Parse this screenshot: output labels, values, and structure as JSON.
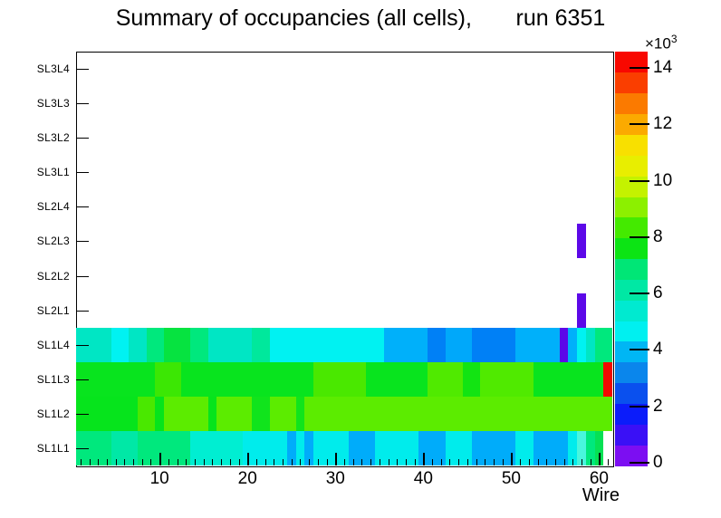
{
  "title": "Summary of occupancies (all cells),       run 6351",
  "layout_colors": {
    "background": "#ffffff",
    "frame": "#000000",
    "text": "#000000"
  },
  "chart_data": {
    "type": "heatmap",
    "title": "Summary of occupancies (all cells),       run 6351",
    "xlabel": "Wire",
    "x_range": [
      0.5,
      61.5
    ],
    "x_major_ticks": [
      10,
      20,
      30,
      40,
      50,
      60
    ],
    "x_minor_tick_step": 1,
    "grid": false,
    "y_categories": [
      "SL1L1",
      "SL1L2",
      "SL1L3",
      "SL1L4",
      "SL2L1",
      "SL2L2",
      "SL2L3",
      "SL2L4",
      "SL3L1",
      "SL3L2",
      "SL3L3",
      "SL3L4"
    ],
    "colorbar": {
      "position": "right",
      "exponent_base": "×10",
      "exponent_power": "3",
      "tick_values": [
        0,
        2,
        4,
        6,
        8,
        10,
        12,
        14
      ],
      "value_min": 0,
      "value_max": 14500,
      "band_colors_bottom_to_top": [
        "#7c0ef2",
        "#3a10f6",
        "#0b1cfa",
        "#0a50ee",
        "#0a86ec",
        "#00b6f4",
        "#00f0f0",
        "#00ead0",
        "#00e8a4",
        "#00e676",
        "#0ce414",
        "#44ea00",
        "#8cf000",
        "#c4f200",
        "#e8ee00",
        "#f8e000",
        "#fbaa00",
        "#fb7a00",
        "#fa3e00",
        "#f80800"
      ]
    },
    "cells_format": "[wire_start, wire_end, css_color, approx_occupancy_x1000]",
    "rows": {
      "SL3L4": [],
      "SL3L3": [],
      "SL3L2": [],
      "SL3L1": [],
      "SL2L4": [],
      "SL2L3": [
        [
          58,
          58,
          "#5c08e8",
          0.8
        ]
      ],
      "SL2L2": [],
      "SL2L1": [
        [
          58,
          58,
          "#5c08e8",
          0.8
        ]
      ],
      "SL1L4": [
        [
          1,
          4,
          "#00e6c4",
          5.6
        ],
        [
          5,
          6,
          "#00f2f2",
          4.8
        ],
        [
          7,
          8,
          "#00e6c4",
          5.6
        ],
        [
          9,
          10,
          "#00e87d",
          7.1
        ],
        [
          11,
          13,
          "#06e340",
          7.5
        ],
        [
          14,
          15,
          "#00e87d",
          7.1
        ],
        [
          16,
          20,
          "#00e6c4",
          5.6
        ],
        [
          21,
          22,
          "#00e89c",
          6.3
        ],
        [
          23,
          35,
          "#00f2f2",
          4.8
        ],
        [
          36,
          40,
          "#00b0fa",
          4.1
        ],
        [
          41,
          42,
          "#0080f6",
          3.3
        ],
        [
          43,
          45,
          "#00a8fa",
          4.0
        ],
        [
          46,
          50,
          "#0080f6",
          3.3
        ],
        [
          51,
          55,
          "#00b0fa",
          4.1
        ],
        [
          56,
          56,
          "#5c08e8",
          0.8
        ],
        [
          57,
          57,
          "#00b0fa",
          4.1
        ],
        [
          58,
          58,
          "#00f2f2",
          4.8
        ],
        [
          59,
          59,
          "#00e6c4",
          5.6
        ],
        [
          60,
          61,
          "#00e87d",
          7.1
        ]
      ],
      "SL1L3": [
        [
          1,
          9,
          "#08e41e",
          7.8
        ],
        [
          10,
          12,
          "#3ce704",
          8.6
        ],
        [
          13,
          27,
          "#08e41e",
          7.8
        ],
        [
          28,
          33,
          "#4ae800",
          8.5
        ],
        [
          34,
          40,
          "#08e41e",
          7.8
        ],
        [
          41,
          44,
          "#50ea00",
          8.6
        ],
        [
          45,
          46,
          "#12e412",
          7.9
        ],
        [
          47,
          52,
          "#50ea00",
          8.6
        ],
        [
          53,
          60,
          "#08e41e",
          7.8
        ],
        [
          61,
          61,
          "#f20800",
          14.3
        ]
      ],
      "SL1L2": [
        [
          1,
          7,
          "#06e41c",
          7.8
        ],
        [
          8,
          9,
          "#4ae800",
          8.5
        ],
        [
          10,
          10,
          "#06e41c",
          7.8
        ],
        [
          11,
          15,
          "#5cec00",
          8.9
        ],
        [
          16,
          16,
          "#06e41c",
          7.8
        ],
        [
          17,
          20,
          "#5cec00",
          8.9
        ],
        [
          21,
          22,
          "#10e41c",
          7.8
        ],
        [
          23,
          25,
          "#5cec00",
          8.9
        ],
        [
          26,
          26,
          "#10e41c",
          7.8
        ],
        [
          27,
          61,
          "#5cec00",
          8.9
        ]
      ],
      "SL1L1": [
        [
          1,
          4,
          "#00e87d",
          7.1
        ],
        [
          5,
          7,
          "#00e8a6",
          6.3
        ],
        [
          8,
          13,
          "#00e87d",
          7.1
        ],
        [
          14,
          19,
          "#00eed2",
          5.9
        ],
        [
          20,
          24,
          "#00ecec",
          4.8
        ],
        [
          25,
          25,
          "#00acfa",
          4.1
        ],
        [
          26,
          26,
          "#00ecec",
          4.8
        ],
        [
          27,
          27,
          "#00acfa",
          4.1
        ],
        [
          28,
          31,
          "#00ecec",
          4.8
        ],
        [
          32,
          34,
          "#00acfa",
          4.1
        ],
        [
          35,
          39,
          "#00ecec",
          4.8
        ],
        [
          40,
          42,
          "#00acfa",
          4.1
        ],
        [
          43,
          45,
          "#00ecec",
          4.8
        ],
        [
          46,
          50,
          "#00acfa",
          4.1
        ],
        [
          51,
          52,
          "#00ecec",
          4.8
        ],
        [
          53,
          56,
          "#00acfa",
          4.1
        ],
        [
          57,
          57,
          "#00ecec",
          4.8
        ],
        [
          58,
          58,
          "#49f6dd",
          5.2
        ],
        [
          59,
          59,
          "#00e87d",
          7.1
        ],
        [
          60,
          60,
          "#06e153",
          7.4
        ]
      ]
    }
  }
}
